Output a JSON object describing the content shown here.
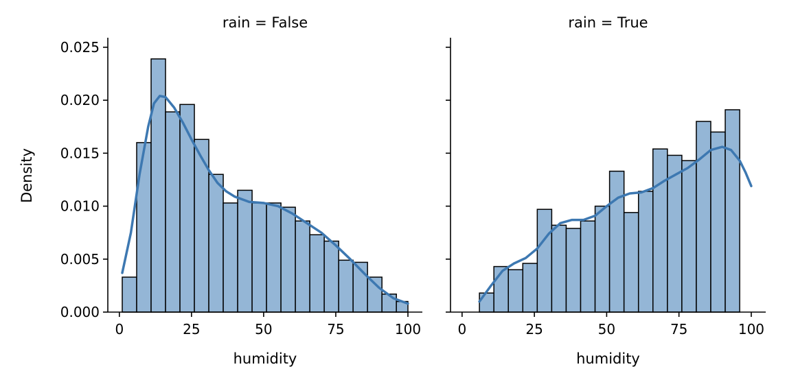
{
  "chart_data": {
    "type": "histogram",
    "ylabel": "Density",
    "xlabel": "humidity",
    "xlim": [
      -4,
      105
    ],
    "ylim": [
      0,
      0.0259
    ],
    "xticks": [
      0,
      25,
      50,
      75,
      100
    ],
    "yticks": [
      "0.000",
      "0.005",
      "0.010",
      "0.015",
      "0.020",
      "0.025"
    ],
    "bar_color": "#94b6d6",
    "edge_color": "#000000",
    "kde_color": "#3d78b1",
    "panels": [
      {
        "title": "rain = False",
        "bins": [
          {
            "x0": 1,
            "x1": 6,
            "y": 0.0033
          },
          {
            "x0": 6,
            "x1": 11,
            "y": 0.016
          },
          {
            "x0": 11,
            "x1": 16,
            "y": 0.0239
          },
          {
            "x0": 16,
            "x1": 21,
            "y": 0.0189
          },
          {
            "x0": 21,
            "x1": 26,
            "y": 0.0196
          },
          {
            "x0": 26,
            "x1": 31,
            "y": 0.0163
          },
          {
            "x0": 31,
            "x1": 36,
            "y": 0.013
          },
          {
            "x0": 36,
            "x1": 41,
            "y": 0.0103
          },
          {
            "x0": 41,
            "x1": 46,
            "y": 0.0115
          },
          {
            "x0": 46,
            "x1": 51,
            "y": 0.0103
          },
          {
            "x0": 51,
            "x1": 56,
            "y": 0.0103
          },
          {
            "x0": 56,
            "x1": 61,
            "y": 0.0099
          },
          {
            "x0": 61,
            "x1": 66,
            "y": 0.0086
          },
          {
            "x0": 66,
            "x1": 71,
            "y": 0.0073
          },
          {
            "x0": 71,
            "x1": 76,
            "y": 0.0067
          },
          {
            "x0": 76,
            "x1": 81,
            "y": 0.0049
          },
          {
            "x0": 81,
            "x1": 86,
            "y": 0.0047
          },
          {
            "x0": 86,
            "x1": 91,
            "y": 0.0033
          },
          {
            "x0": 91,
            "x1": 96,
            "y": 0.0017
          },
          {
            "x0": 96,
            "x1": 100,
            "y": 0.001
          }
        ],
        "kde": [
          [
            1,
            0.0037
          ],
          [
            4,
            0.0075
          ],
          [
            7,
            0.013
          ],
          [
            10,
            0.0175
          ],
          [
            12,
            0.0197
          ],
          [
            14,
            0.0204
          ],
          [
            16,
            0.0203
          ],
          [
            19,
            0.0193
          ],
          [
            22,
            0.0179
          ],
          [
            25,
            0.0163
          ],
          [
            28,
            0.0148
          ],
          [
            31,
            0.0134
          ],
          [
            34,
            0.0122
          ],
          [
            37,
            0.0114
          ],
          [
            40,
            0.0109
          ],
          [
            45,
            0.0104
          ],
          [
            50,
            0.0103
          ],
          [
            55,
            0.01
          ],
          [
            60,
            0.0093
          ],
          [
            65,
            0.0084
          ],
          [
            70,
            0.0075
          ],
          [
            75,
            0.0063
          ],
          [
            80,
            0.005
          ],
          [
            85,
            0.0036
          ],
          [
            90,
            0.0023
          ],
          [
            95,
            0.0013
          ],
          [
            100,
            0.0008
          ]
        ]
      },
      {
        "title": "rain = True",
        "bins": [
          {
            "x0": 6,
            "x1": 11,
            "y": 0.0018
          },
          {
            "x0": 11,
            "x1": 16,
            "y": 0.0043
          },
          {
            "x0": 16,
            "x1": 21,
            "y": 0.004
          },
          {
            "x0": 21,
            "x1": 26,
            "y": 0.0046
          },
          {
            "x0": 26,
            "x1": 31,
            "y": 0.0097
          },
          {
            "x0": 31,
            "x1": 36,
            "y": 0.0082
          },
          {
            "x0": 36,
            "x1": 41,
            "y": 0.0079
          },
          {
            "x0": 41,
            "x1": 46,
            "y": 0.0086
          },
          {
            "x0": 46,
            "x1": 51,
            "y": 0.01
          },
          {
            "x0": 51,
            "x1": 56,
            "y": 0.0133
          },
          {
            "x0": 56,
            "x1": 61,
            "y": 0.0094
          },
          {
            "x0": 61,
            "x1": 66,
            "y": 0.0114
          },
          {
            "x0": 66,
            "x1": 71,
            "y": 0.0154
          },
          {
            "x0": 71,
            "x1": 76,
            "y": 0.0148
          },
          {
            "x0": 76,
            "x1": 81,
            "y": 0.0143
          },
          {
            "x0": 81,
            "x1": 86,
            "y": 0.018
          },
          {
            "x0": 86,
            "x1": 91,
            "y": 0.017
          },
          {
            "x0": 91,
            "x1": 96,
            "y": 0.0191
          }
        ],
        "kde": [
          [
            6,
            0.001
          ],
          [
            10,
            0.0025
          ],
          [
            14,
            0.0039
          ],
          [
            18,
            0.0046
          ],
          [
            22,
            0.0051
          ],
          [
            26,
            0.006
          ],
          [
            30,
            0.0074
          ],
          [
            34,
            0.0084
          ],
          [
            38,
            0.0087
          ],
          [
            42,
            0.0087
          ],
          [
            46,
            0.0091
          ],
          [
            50,
            0.01
          ],
          [
            54,
            0.0108
          ],
          [
            58,
            0.0112
          ],
          [
            62,
            0.0113
          ],
          [
            66,
            0.0117
          ],
          [
            70,
            0.0124
          ],
          [
            74,
            0.013
          ],
          [
            78,
            0.0136
          ],
          [
            82,
            0.0144
          ],
          [
            86,
            0.0153
          ],
          [
            90,
            0.0156
          ],
          [
            93,
            0.0153
          ],
          [
            96,
            0.0143
          ],
          [
            98,
            0.0132
          ],
          [
            100,
            0.0119
          ]
        ]
      }
    ]
  }
}
